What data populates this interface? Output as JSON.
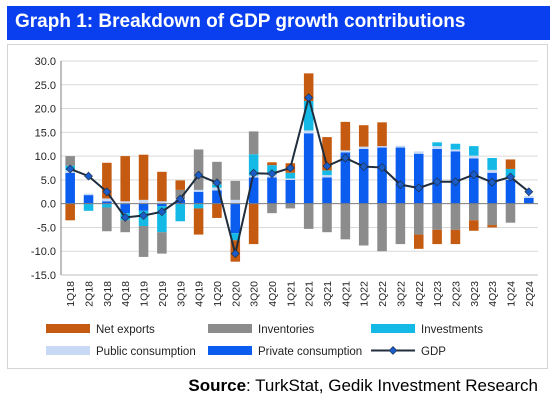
{
  "title": "Graph 1: Breakdown of GDP growth contributions",
  "source_label": "Source",
  "source_text": ": TurkStat, Gedik Investment Research",
  "colors": {
    "title_bg": "#0a3ff0",
    "net_exports": "#c55a11",
    "inventories": "#8c8c8c",
    "investments": "#14b9e6",
    "public_consumption": "#c7d9f5",
    "private_consumption": "#0b5df0",
    "gdp": "#1f2d3d",
    "gdp_marker": "#1a5cc8"
  },
  "chart_data": {
    "type": "bar",
    "stacked": true,
    "categories": [
      "1Q18",
      "2Q18",
      "3Q18",
      "4Q18",
      "1Q19",
      "2Q19",
      "3Q19",
      "4Q19",
      "1Q20",
      "2Q20",
      "3Q20",
      "4Q20",
      "1Q21",
      "2Q21",
      "3Q21",
      "4Q21",
      "1Q22",
      "2Q22",
      "3Q22",
      "4Q22",
      "1Q23",
      "2Q23",
      "3Q23",
      "4Q23",
      "1Q24",
      "2Q24"
    ],
    "ylim": [
      -15,
      30
    ],
    "yticks": [
      "-15.0",
      "-10.0",
      "-5.0",
      "0.0",
      "5.0",
      "10.0",
      "15.0",
      "20.0",
      "25.0",
      "30.0"
    ],
    "grid": true,
    "legend_position": "bottom",
    "series": [
      {
        "name": "Private consumption",
        "key": "private_consumption",
        "values": [
          6.5,
          1.8,
          0.5,
          -2.0,
          -1.5,
          -0.5,
          0.8,
          2.5,
          2.8,
          -6.2,
          5.5,
          5.5,
          5.0,
          14.8,
          5.5,
          10.8,
          11.5,
          11.8,
          11.8,
          10.5,
          11.5,
          11.0,
          9.5,
          6.5,
          5.0,
          1.2
        ]
      },
      {
        "name": "Public consumption",
        "key": "public_consumption",
        "values": [
          0.5,
          0.3,
          0.6,
          0.5,
          0.8,
          0.5,
          0.3,
          0.4,
          0.6,
          0.8,
          0.4,
          0.6,
          0.3,
          0.6,
          0.5,
          0.4,
          0.5,
          0.3,
          0.4,
          0.5,
          0.6,
          0.4,
          0.6,
          0.6,
          0.5,
          0.4
        ]
      },
      {
        "name": "Investments",
        "key": "investments",
        "values": [
          1.0,
          -1.5,
          -0.8,
          -1.5,
          -3.2,
          -5.5,
          -3.7,
          -1.0,
          0.6,
          -1.5,
          4.5,
          2.0,
          1.2,
          6.2,
          1.0,
          0.0,
          0.0,
          0.0,
          0.0,
          0.0,
          0.8,
          1.2,
          2.0,
          2.5,
          1.8,
          0.0
        ]
      },
      {
        "name": "Inventories",
        "key": "inventories",
        "values": [
          2.0,
          0.0,
          -5.0,
          -2.5,
          -6.5,
          -4.5,
          1.8,
          8.5,
          4.8,
          4.0,
          4.8,
          -2.0,
          -1.0,
          -5.3,
          -6.0,
          -7.5,
          -8.8,
          -10.0,
          -8.5,
          -6.5,
          -5.5,
          -5.5,
          -3.5,
          -4.5,
          -4.0,
          0.0
        ]
      },
      {
        "name": "Net exports",
        "key": "net_exports",
        "values": [
          -3.5,
          0.0,
          7.5,
          9.5,
          9.5,
          6.2,
          2.0,
          -5.5,
          -3.0,
          -4.5,
          -8.5,
          0.6,
          2.0,
          5.8,
          7.0,
          6.0,
          4.5,
          5.0,
          0.0,
          -3.0,
          -3.0,
          -3.0,
          -2.2,
          -0.5,
          2.0,
          0.0
        ]
      },
      {
        "name": "GDP",
        "key": "gdp",
        "type": "line",
        "values": [
          7.3,
          5.8,
          2.5,
          -2.9,
          -2.5,
          -1.7,
          1.0,
          6.0,
          4.4,
          -10.5,
          6.4,
          6.3,
          7.5,
          22.3,
          7.9,
          9.6,
          7.8,
          7.6,
          4.0,
          3.3,
          4.6,
          4.6,
          6.1,
          4.5,
          5.6,
          2.5
        ]
      }
    ],
    "legend": [
      {
        "key": "net_exports",
        "label": "Net exports",
        "kind": "box"
      },
      {
        "key": "inventories",
        "label": "Inventories",
        "kind": "box"
      },
      {
        "key": "investments",
        "label": "Investments",
        "kind": "box"
      },
      {
        "key": "public_consumption",
        "label": "Public consumption",
        "kind": "box"
      },
      {
        "key": "private_consumption",
        "label": "Private consumption",
        "kind": "box"
      },
      {
        "key": "gdp",
        "label": "GDP",
        "kind": "line"
      }
    ]
  }
}
